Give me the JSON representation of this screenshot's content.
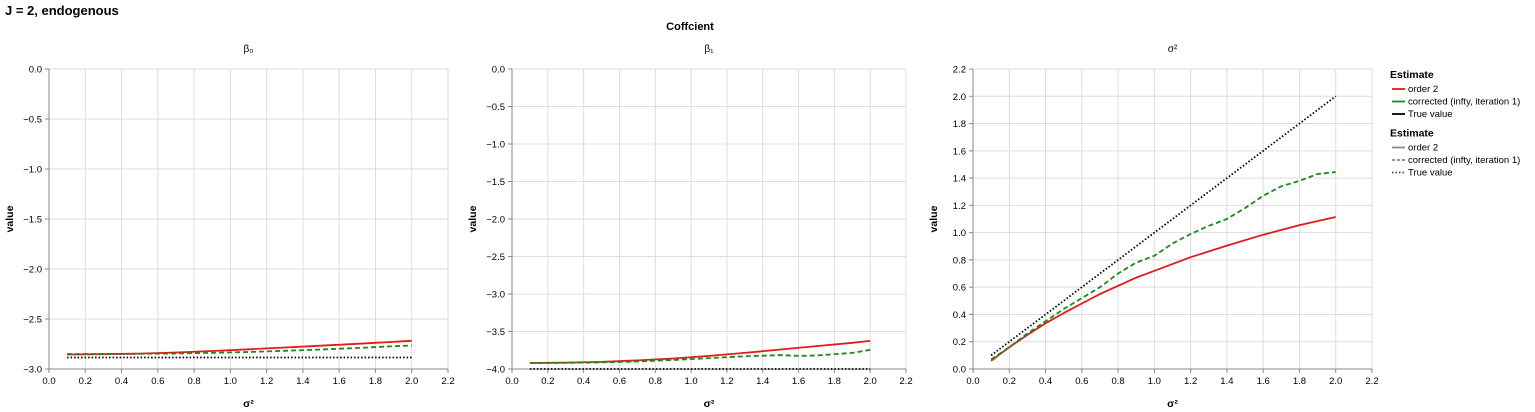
{
  "figure_title": "J = 2, endogenous",
  "facet_header": "Coffcient",
  "legend": [
    {
      "title": "Estimate",
      "kind": "color",
      "entries": [
        {
          "label": "order 2",
          "color": "#e41a1c",
          "dash": "solid"
        },
        {
          "label": "corrected (infty, iteration 1)",
          "color": "#1a8a1a",
          "dash": "solid"
        },
        {
          "label": "True value",
          "color": "#000000",
          "dash": "solid"
        }
      ]
    },
    {
      "title": "Estimate",
      "kind": "linetype",
      "entries": [
        {
          "label": "order 2",
          "color": "#888888",
          "dash": "solid"
        },
        {
          "label": "corrected (infty, iteration 1)",
          "color": "#888888",
          "dash": "dashed"
        },
        {
          "label": "True value",
          "color": "#444444",
          "dash": "dotted"
        }
      ]
    }
  ],
  "chart_data": [
    {
      "type": "line",
      "title": "β₀",
      "xlabel": "σ²",
      "ylabel": "value",
      "xlim": [
        0,
        2.2
      ],
      "ylim": [
        -3.0,
        0.0
      ],
      "xticks": [
        0.0,
        0.2,
        0.4,
        0.6,
        0.8,
        1.0,
        1.2,
        1.4,
        1.6,
        1.8,
        2.0,
        2.2
      ],
      "yticks": [
        -3.0,
        -2.5,
        -2.0,
        -1.5,
        -1.0,
        -0.5,
        0.0
      ],
      "grid": true,
      "series": [
        {
          "name": "order 2",
          "color": "#e41a1c",
          "dash": "solid",
          "x": [
            0.1,
            0.3,
            0.5,
            0.7,
            0.9,
            1.1,
            1.3,
            1.5,
            1.7,
            1.9,
            2.0
          ],
          "y": [
            -2.855,
            -2.852,
            -2.846,
            -2.835,
            -2.82,
            -2.803,
            -2.785,
            -2.767,
            -2.748,
            -2.728,
            -2.718
          ]
        },
        {
          "name": "corrected (infty, iteration 1)",
          "color": "#1a8a1a",
          "dash": "dashed",
          "x": [
            0.1,
            0.3,
            0.5,
            0.7,
            0.9,
            1.1,
            1.3,
            1.5,
            1.7,
            1.9,
            2.0
          ],
          "y": [
            -2.85,
            -2.85,
            -2.848,
            -2.845,
            -2.838,
            -2.83,
            -2.818,
            -2.805,
            -2.79,
            -2.772,
            -2.765
          ]
        },
        {
          "name": "True value",
          "color": "#000000",
          "dash": "dotted",
          "x": [
            0.1,
            2.0
          ],
          "y": [
            -2.885,
            -2.885
          ]
        }
      ]
    },
    {
      "type": "line",
      "title": "β₁",
      "xlabel": "σ²",
      "ylabel": "value",
      "xlim": [
        0,
        2.2
      ],
      "ylim": [
        -4.0,
        0.0
      ],
      "xticks": [
        0.0,
        0.2,
        0.4,
        0.6,
        0.8,
        1.0,
        1.2,
        1.4,
        1.6,
        1.8,
        2.0,
        2.2
      ],
      "yticks": [
        -4.0,
        -3.5,
        -3.0,
        -2.5,
        -2.0,
        -1.5,
        -1.0,
        -0.5,
        0.0
      ],
      "grid": true,
      "series": [
        {
          "name": "order 2",
          "color": "#e41a1c",
          "dash": "solid",
          "x": [
            0.1,
            0.3,
            0.5,
            0.7,
            0.9,
            1.1,
            1.3,
            1.5,
            1.7,
            1.9,
            2.0
          ],
          "y": [
            -3.92,
            -3.915,
            -3.905,
            -3.885,
            -3.86,
            -3.825,
            -3.785,
            -3.74,
            -3.695,
            -3.65,
            -3.625
          ]
        },
        {
          "name": "corrected (infty, iteration 1)",
          "color": "#1a8a1a",
          "dash": "dashed",
          "x": [
            0.1,
            0.3,
            0.5,
            0.7,
            0.9,
            1.1,
            1.3,
            1.5,
            1.6,
            1.7,
            1.9,
            2.0
          ],
          "y": [
            -3.92,
            -3.918,
            -3.912,
            -3.9,
            -3.88,
            -3.855,
            -3.83,
            -3.815,
            -3.825,
            -3.82,
            -3.785,
            -3.745
          ]
        },
        {
          "name": "True value",
          "color": "#000000",
          "dash": "dotted",
          "x": [
            0.1,
            2.0
          ],
          "y": [
            -4.0,
            -4.0
          ]
        }
      ]
    },
    {
      "type": "line",
      "title": "σ²",
      "xlabel": "σ²",
      "ylabel": "value",
      "xlim": [
        0,
        2.2
      ],
      "ylim": [
        0.0,
        2.2
      ],
      "xticks": [
        0.0,
        0.2,
        0.4,
        0.6,
        0.8,
        1.0,
        1.2,
        1.4,
        1.6,
        1.8,
        2.0,
        2.2
      ],
      "yticks": [
        0.0,
        0.2,
        0.4,
        0.6,
        0.8,
        1.0,
        1.2,
        1.4,
        1.6,
        1.8,
        2.0,
        2.2
      ],
      "grid": true,
      "series": [
        {
          "name": "order 2",
          "color": "#e41a1c",
          "dash": "solid",
          "x": [
            0.1,
            0.2,
            0.3,
            0.4,
            0.5,
            0.6,
            0.7,
            0.8,
            0.9,
            1.0,
            1.2,
            1.4,
            1.6,
            1.8,
            2.0
          ],
          "y": [
            0.06,
            0.16,
            0.25,
            0.335,
            0.41,
            0.48,
            0.55,
            0.61,
            0.67,
            0.72,
            0.82,
            0.905,
            0.985,
            1.055,
            1.115
          ]
        },
        {
          "name": "corrected (infty, iteration 1)",
          "color": "#1a8a1a",
          "dash": "dashed",
          "x": [
            0.1,
            0.2,
            0.3,
            0.4,
            0.5,
            0.6,
            0.7,
            0.8,
            0.9,
            1.0,
            1.1,
            1.2,
            1.3,
            1.4,
            1.5,
            1.6,
            1.7,
            1.8,
            1.9,
            2.0
          ],
          "y": [
            0.07,
            0.16,
            0.26,
            0.35,
            0.44,
            0.52,
            0.6,
            0.7,
            0.78,
            0.83,
            0.92,
            0.99,
            1.05,
            1.1,
            1.18,
            1.27,
            1.34,
            1.38,
            1.43,
            1.445
          ]
        },
        {
          "name": "True value",
          "color": "#000000",
          "dash": "dotted",
          "x": [
            0.1,
            2.0
          ],
          "y": [
            0.1,
            2.0
          ]
        }
      ]
    }
  ]
}
